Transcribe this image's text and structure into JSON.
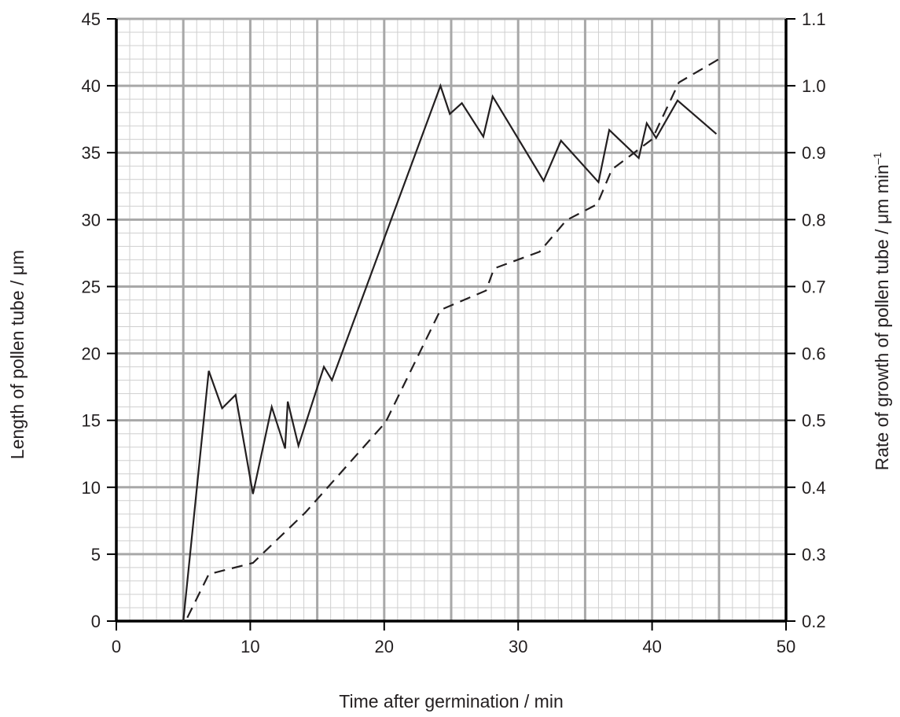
{
  "chart_data": {
    "type": "line",
    "title": "",
    "xlabel": "Time after germination  / min",
    "ylabel_left": "Length of pollen tube  / μm",
    "ylabel_right": "Rate of growth of pollen tube  / μm min",
    "ylabel_right_superscript": "–1",
    "xlim": [
      0,
      50
    ],
    "ylim_left": [
      0,
      45
    ],
    "ylim_right": [
      0.2,
      1.1
    ],
    "x_ticks": [
      "0",
      "10",
      "20",
      "30",
      "40",
      "50"
    ],
    "y_ticks_left": [
      "0",
      "5",
      "10",
      "15",
      "20",
      "25",
      "30",
      "35",
      "40",
      "45"
    ],
    "y_ticks_right": [
      "0.2",
      "0.3",
      "0.4",
      "0.5",
      "0.6",
      "0.7",
      "0.8",
      "0.9",
      "1.0",
      "1.1"
    ],
    "grid": true,
    "series": [
      {
        "style": "solid",
        "axis": "left",
        "x": [
          5.0,
          6.9,
          7.9,
          8.9,
          10.2,
          11.6,
          12.6,
          12.8,
          13.6,
          15.5,
          16.1,
          24.2,
          24.9,
          25.8,
          27.4,
          28.1,
          31.9,
          33.2,
          36.0,
          36.8,
          39.0,
          39.6,
          40.3,
          41.9,
          44.8
        ],
        "y": [
          0,
          18.7,
          15.9,
          16.9,
          9.5,
          16.0,
          12.9,
          16.4,
          13.1,
          19.0,
          18.0,
          40.0,
          37.9,
          38.7,
          36.2,
          39.2,
          32.9,
          35.9,
          32.8,
          36.7,
          34.6,
          37.2,
          36.1,
          38.9,
          36.4
        ]
      },
      {
        "style": "dashed",
        "axis": "right",
        "x": [
          5.3,
          6.9,
          10.2,
          14.1,
          20.1,
          24.2,
          27.6,
          28.2,
          31.6,
          33.6,
          35.9,
          37.0,
          40.0,
          42.0,
          45.0
        ],
        "y": [
          0.205,
          0.27,
          0.287,
          0.362,
          0.497,
          0.665,
          0.694,
          0.727,
          0.752,
          0.799,
          0.823,
          0.875,
          0.92,
          1.005,
          1.04
        ]
      }
    ]
  }
}
